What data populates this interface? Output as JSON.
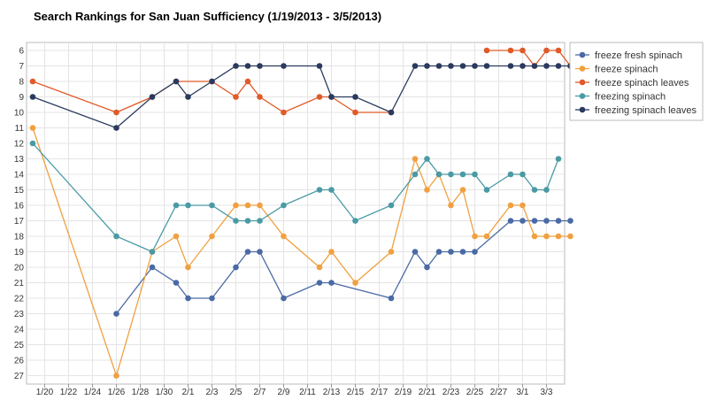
{
  "chart_data": {
    "type": "line",
    "title": "Search Rankings for San Juan Sufficiency (1/19/2013 - 3/5/2013)",
    "xlabel": "",
    "ylabel": "",
    "x_start": "1/19",
    "x_ticks": [
      "1/20",
      "1/22",
      "1/24",
      "1/26",
      "1/28",
      "1/30",
      "2/1",
      "2/3",
      "2/5",
      "2/7",
      "2/9",
      "2/11",
      "2/13",
      "2/15",
      "2/17",
      "2/19",
      "2/21",
      "2/23",
      "2/25",
      "2/27",
      "3/1",
      "3/3"
    ],
    "y_ticks": [
      6,
      7,
      8,
      9,
      10,
      11,
      12,
      13,
      14,
      15,
      16,
      17,
      18,
      19,
      20,
      21,
      22,
      23,
      24,
      25,
      26,
      27
    ],
    "ylim": [
      6,
      27
    ],
    "y_inverted": true,
    "grid": true,
    "legend_position": "right",
    "series": [
      {
        "name": "freeze fresh spinach",
        "color": "#4a6aa5",
        "points": [
          [
            "1/26",
            23
          ],
          [
            "1/29",
            20
          ],
          [
            "1/31",
            21
          ],
          [
            "2/1",
            22
          ],
          [
            "2/3",
            22
          ],
          [
            "2/5",
            20
          ],
          [
            "2/6",
            19
          ],
          [
            "2/7",
            19
          ],
          [
            "2/9",
            22
          ],
          [
            "2/12",
            21
          ],
          [
            "2/13",
            21
          ],
          [
            "2/18",
            22
          ],
          [
            "2/20",
            19
          ],
          [
            "2/21",
            20
          ],
          [
            "2/22",
            19
          ],
          [
            "2/23",
            19
          ],
          [
            "2/24",
            19
          ],
          [
            "2/25",
            19
          ],
          [
            "2/28",
            17
          ],
          [
            "3/1",
            17
          ],
          [
            "3/2",
            17
          ],
          [
            "3/3",
            17
          ],
          [
            "3/4",
            17
          ],
          [
            "3/5",
            17
          ]
        ]
      },
      {
        "name": "freeze spinach",
        "color": "#f0a040",
        "points": [
          [
            "1/19",
            11
          ],
          [
            "1/26",
            27
          ],
          [
            "1/29",
            19
          ],
          [
            "1/31",
            18
          ],
          [
            "2/1",
            20
          ],
          [
            "2/3",
            18
          ],
          [
            "2/5",
            16
          ],
          [
            "2/6",
            16
          ],
          [
            "2/7",
            16
          ],
          [
            "2/9",
            18
          ],
          [
            "2/12",
            20
          ],
          [
            "2/13",
            19
          ],
          [
            "2/15",
            21
          ],
          [
            "2/18",
            19
          ],
          [
            "2/20",
            13
          ],
          [
            "2/21",
            15
          ],
          [
            "2/22",
            14
          ],
          [
            "2/23",
            16
          ],
          [
            "2/24",
            15
          ],
          [
            "2/25",
            18
          ],
          [
            "2/26",
            18
          ],
          [
            "2/28",
            16
          ],
          [
            "3/1",
            16
          ],
          [
            "3/2",
            18
          ],
          [
            "3/3",
            18
          ],
          [
            "3/4",
            18
          ],
          [
            "3/5",
            18
          ]
        ]
      },
      {
        "name": "freeze spinach leaves",
        "color": "#e05a28",
        "points": [
          [
            "1/19",
            8
          ],
          [
            "1/26",
            10
          ],
          [
            "1/29",
            9
          ],
          [
            "1/31",
            8
          ],
          [
            "2/3",
            8
          ],
          [
            "2/5",
            9
          ],
          [
            "2/6",
            8
          ],
          [
            "2/7",
            9
          ],
          [
            "2/9",
            10
          ],
          [
            "2/12",
            9
          ],
          [
            "2/13",
            9
          ],
          [
            "2/15",
            10
          ],
          [
            "2/18",
            10
          ]
        ],
        "points_segment_2": [
          [
            "2/26",
            6
          ],
          [
            "2/28",
            6
          ],
          [
            "3/1",
            6
          ],
          [
            "3/2",
            7
          ],
          [
            "3/3",
            6
          ],
          [
            "3/4",
            6
          ],
          [
            "3/5",
            7
          ]
        ]
      },
      {
        "name": "freezing spinach",
        "color": "#4a9aa5",
        "points": [
          [
            "1/19",
            12
          ],
          [
            "1/26",
            18
          ],
          [
            "1/29",
            19
          ],
          [
            "1/31",
            16
          ],
          [
            "2/1",
            16
          ],
          [
            "2/3",
            16
          ],
          [
            "2/5",
            17
          ],
          [
            "2/6",
            17
          ],
          [
            "2/7",
            17
          ],
          [
            "2/9",
            16
          ],
          [
            "2/12",
            15
          ],
          [
            "2/13",
            15
          ],
          [
            "2/15",
            17
          ],
          [
            "2/18",
            16
          ],
          [
            "2/20",
            14
          ],
          [
            "2/21",
            13
          ],
          [
            "2/22",
            14
          ],
          [
            "2/23",
            14
          ],
          [
            "2/24",
            14
          ],
          [
            "2/25",
            14
          ],
          [
            "2/26",
            15
          ],
          [
            "2/28",
            14
          ],
          [
            "3/1",
            14
          ],
          [
            "3/2",
            15
          ],
          [
            "3/3",
            15
          ],
          [
            "3/4",
            13
          ]
        ]
      },
      {
        "name": "freezing spinach leaves",
        "color": "#2a3a5e",
        "points": [
          [
            "1/19",
            9
          ],
          [
            "1/26",
            11
          ],
          [
            "1/29",
            9
          ],
          [
            "1/31",
            8
          ],
          [
            "2/1",
            9
          ],
          [
            "2/3",
            8
          ],
          [
            "2/5",
            7
          ],
          [
            "2/6",
            7
          ],
          [
            "2/7",
            7
          ],
          [
            "2/9",
            7
          ],
          [
            "2/12",
            7
          ],
          [
            "2/13",
            9
          ],
          [
            "2/15",
            9
          ],
          [
            "2/18",
            10
          ],
          [
            "2/20",
            7
          ],
          [
            "2/21",
            7
          ],
          [
            "2/22",
            7
          ],
          [
            "2/23",
            7
          ],
          [
            "2/24",
            7
          ],
          [
            "2/25",
            7
          ],
          [
            "2/26",
            7
          ],
          [
            "2/28",
            7
          ],
          [
            "3/1",
            7
          ],
          [
            "3/2",
            7
          ],
          [
            "3/3",
            7
          ],
          [
            "3/4",
            7
          ],
          [
            "3/5",
            7
          ]
        ]
      }
    ]
  }
}
